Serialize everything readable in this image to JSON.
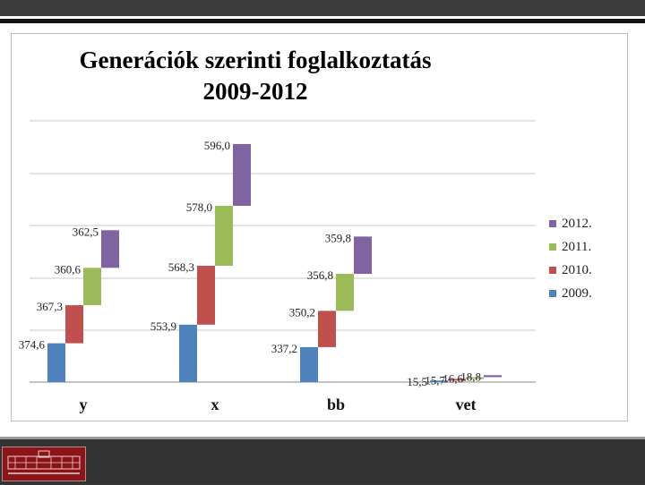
{
  "chart_data": {
    "type": "bar",
    "title_lines": [
      "Generációk szerinti foglalkoztatás",
      "2009-2012"
    ],
    "categories": [
      "y",
      "x",
      "bb",
      "vet"
    ],
    "series": [
      {
        "name": "2009.",
        "color": "#4f81bd",
        "values": [
          374.6,
          553.9,
          337.2,
          15.5
        ]
      },
      {
        "name": "2010.",
        "color": "#c0504d",
        "values": [
          367.3,
          568.3,
          350.2,
          15.7
        ]
      },
      {
        "name": "2011.",
        "color": "#9bbb59",
        "values": [
          360.6,
          578.0,
          356.8,
          16.6
        ]
      },
      {
        "name": "2012.",
        "color": "#8064a2",
        "values": [
          362.5,
          596.0,
          359.8,
          18.8
        ]
      }
    ],
    "data_labels": [
      [
        "374,6",
        "367,3",
        "360,6",
        "362,5"
      ],
      [
        "553,9",
        "568,3",
        "578,0",
        "596,0"
      ],
      [
        "337,2",
        "350,2",
        "356,8",
        "359,8"
      ],
      [
        "15,5",
        "15,7",
        "16,6",
        "18,8"
      ]
    ],
    "grid": true,
    "legend_position": "right"
  }
}
